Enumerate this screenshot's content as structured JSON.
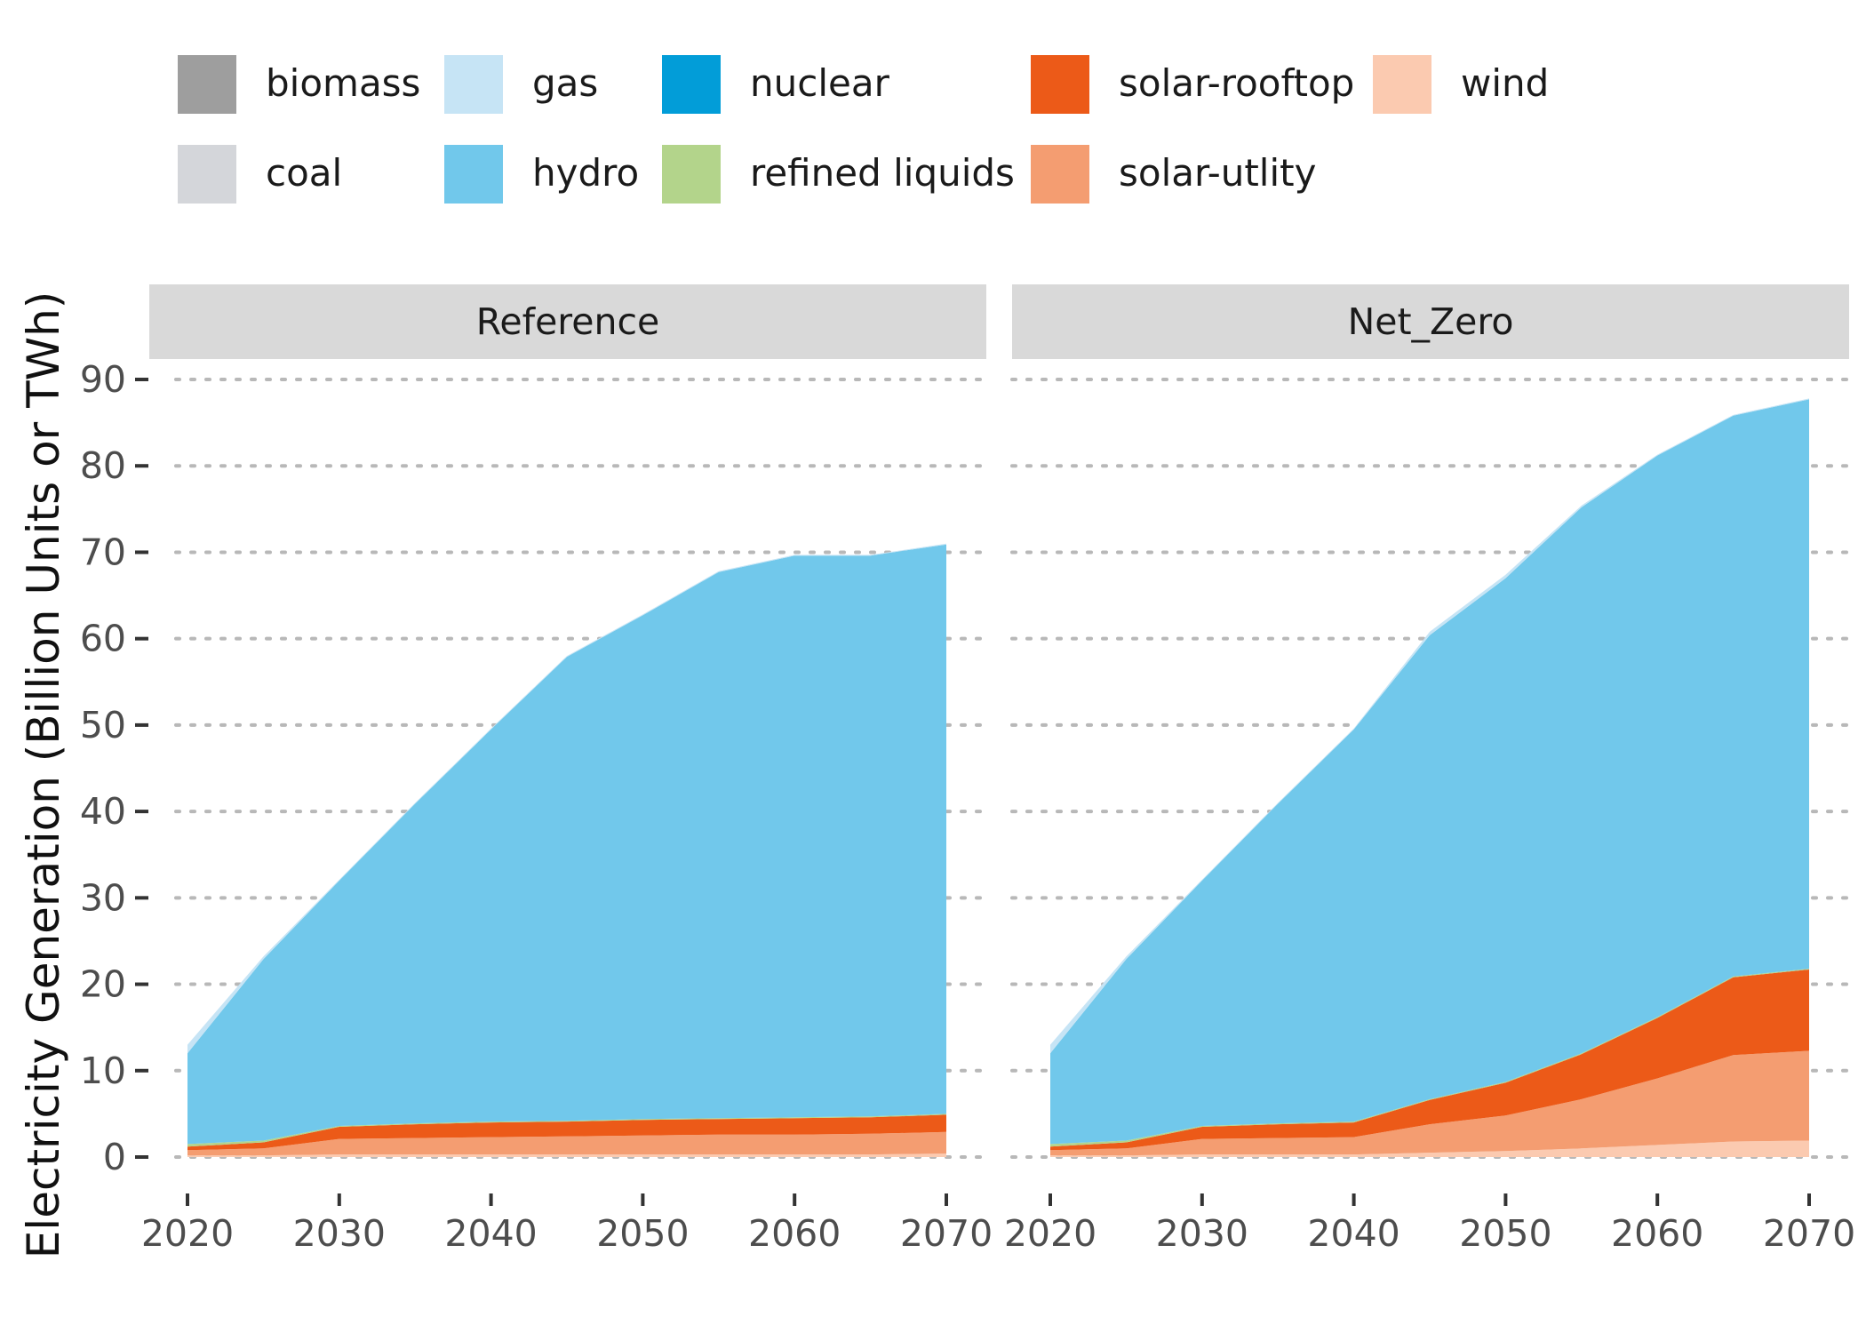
{
  "legend": {
    "items": [
      {
        "label": "biomass",
        "color": "#9e9e9e"
      },
      {
        "label": "coal",
        "color": "#d4d6da"
      },
      {
        "label": "gas",
        "color": "#c6e4f5"
      },
      {
        "label": "hydro",
        "color": "#71c8eb"
      },
      {
        "label": "nuclear",
        "color": "#029dd8"
      },
      {
        "label": "refined liquids",
        "color": "#b3d48b"
      },
      {
        "label": "solar-rooftop",
        "color": "#ec5a18"
      },
      {
        "label": "solar-utlity",
        "color": "#f49d71"
      },
      {
        "label": "wind",
        "color": "#fbcab0"
      }
    ]
  },
  "chart_data": {
    "type": "area",
    "stacked": true,
    "ylabel": "Electricity Generation (Billion Units or TWh)",
    "xlabel": "",
    "ylim": [
      0,
      90
    ],
    "yticks": [
      0,
      10,
      20,
      30,
      40,
      50,
      60,
      70,
      80,
      90
    ],
    "xlim": [
      2020,
      2070
    ],
    "xticks": [
      2020,
      2030,
      2040,
      2050,
      2060,
      2070
    ],
    "grid": "horizontal dotted",
    "legend_position": "top",
    "stack_order_bottom_to_top": [
      "wind",
      "solar-utlity",
      "solar-rooftop",
      "refined liquids",
      "nuclear",
      "hydro",
      "gas",
      "coal",
      "biomass"
    ],
    "panels": [
      {
        "name": "Reference",
        "x": [
          2020,
          2025,
          2030,
          2035,
          2040,
          2045,
          2050,
          2055,
          2060,
          2065,
          2070
        ],
        "series": [
          {
            "name": "wind",
            "values": [
              0.2,
              0.2,
              0.3,
              0.3,
              0.3,
              0.3,
              0.3,
              0.3,
              0.3,
              0.3,
              0.4
            ]
          },
          {
            "name": "solar-utlity",
            "values": [
              0.6,
              0.8,
              1.8,
              1.9,
              2.0,
              2.1,
              2.2,
              2.3,
              2.3,
              2.4,
              2.5
            ]
          },
          {
            "name": "solar-rooftop",
            "values": [
              0.4,
              0.7,
              1.4,
              1.6,
              1.7,
              1.7,
              1.8,
              1.8,
              1.9,
              1.9,
              2.0
            ]
          },
          {
            "name": "refined liquids",
            "values": [
              0.3,
              0.2,
              0.1,
              0.1,
              0.1,
              0.1,
              0.1,
              0.1,
              0.1,
              0.1,
              0.1
            ]
          },
          {
            "name": "nuclear",
            "values": [
              0,
              0,
              0,
              0,
              0,
              0,
              0,
              0,
              0,
              0,
              0
            ]
          },
          {
            "name": "hydro",
            "values": [
              10.5,
              21.0,
              28.4,
              37.0,
              45.4,
              53.7,
              58.3,
              63.2,
              65.0,
              64.9,
              65.9
            ]
          },
          {
            "name": "gas",
            "values": [
              1.0,
              0.3,
              0.1,
              0.1,
              0.1,
              0.1,
              0.1,
              0.1,
              0.1,
              0.1,
              0.1
            ]
          },
          {
            "name": "coal",
            "values": [
              0,
              0,
              0,
              0,
              0,
              0,
              0,
              0,
              0,
              0,
              0
            ]
          },
          {
            "name": "biomass",
            "values": [
              0,
              0,
              0,
              0,
              0,
              0,
              0,
              0,
              0,
              0,
              0
            ]
          }
        ]
      },
      {
        "name": "Net_Zero",
        "x": [
          2020,
          2025,
          2030,
          2035,
          2040,
          2045,
          2050,
          2055,
          2060,
          2065,
          2070
        ],
        "series": [
          {
            "name": "wind",
            "values": [
              0.2,
              0.2,
              0.3,
              0.3,
              0.3,
              0.5,
              0.7,
              1.0,
              1.4,
              1.8,
              1.9
            ]
          },
          {
            "name": "solar-utlity",
            "values": [
              0.6,
              0.8,
              1.8,
              1.9,
              2.0,
              3.3,
              4.1,
              5.7,
              7.7,
              10.0,
              10.4
            ]
          },
          {
            "name": "solar-rooftop",
            "values": [
              0.4,
              0.7,
              1.4,
              1.6,
              1.7,
              2.8,
              3.8,
              5.2,
              7.0,
              9.0,
              9.4
            ]
          },
          {
            "name": "refined liquids",
            "values": [
              0.3,
              0.2,
              0.1,
              0.1,
              0.1,
              0.1,
              0.1,
              0.1,
              0.1,
              0.1,
              0.1
            ]
          },
          {
            "name": "nuclear",
            "values": [
              0,
              0,
              0,
              0,
              0,
              0,
              0,
              0,
              0,
              0,
              0
            ]
          },
          {
            "name": "hydro",
            "values": [
              10.5,
              21.0,
              28.4,
              37.0,
              45.4,
              53.7,
              58.3,
              63.2,
              65.0,
              64.9,
              65.9
            ]
          },
          {
            "name": "gas",
            "values": [
              1.0,
              0.3,
              0.1,
              0.1,
              0.1,
              0.4,
              0.4,
              0.2,
              0.1,
              0.1,
              0.1
            ]
          },
          {
            "name": "coal",
            "values": [
              0,
              0,
              0,
              0,
              0,
              0,
              0,
              0,
              0,
              0,
              0
            ]
          },
          {
            "name": "biomass",
            "values": [
              0,
              0,
              0,
              0,
              0,
              0,
              0,
              0,
              0,
              0,
              0
            ]
          }
        ]
      }
    ]
  }
}
